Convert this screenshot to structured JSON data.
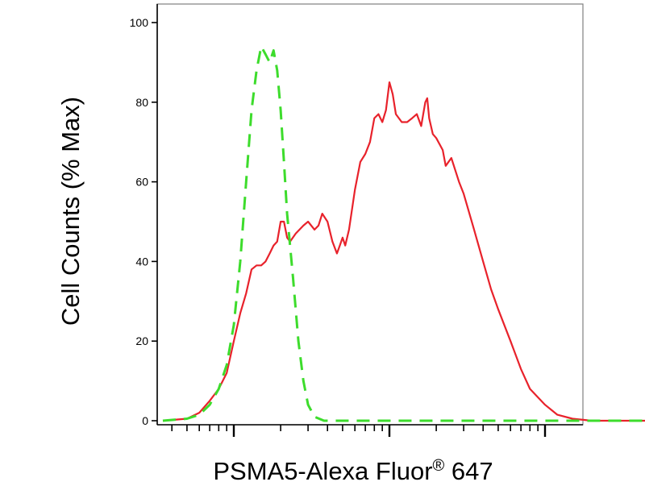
{
  "chart_data": {
    "type": "line",
    "title": "",
    "ylabel": "Cell Counts (% Max)",
    "xlabel": "PSMA5-Alexa Fluor",
    "xlabel_mark": "®",
    "xlabel_suffix": "647",
    "x_scale": "log",
    "x_tick_labels_shown": false,
    "xlim": [
      0.35,
      3000
    ],
    "ylim": [
      0,
      100
    ],
    "yticks": [
      0,
      20,
      40,
      60,
      80,
      100
    ],
    "ytick_labels": [
      "0",
      "20",
      "40",
      "60",
      "80",
      "100"
    ],
    "grid": false,
    "series": [
      {
        "color": "#e8222b",
        "style": "solid",
        "points": [
          [
            0.35,
            0
          ],
          [
            0.5,
            0.5
          ],
          [
            0.6,
            2
          ],
          [
            0.7,
            5
          ],
          [
            0.8,
            8
          ],
          [
            0.9,
            12
          ],
          [
            1.0,
            20
          ],
          [
            1.1,
            27
          ],
          [
            1.2,
            32
          ],
          [
            1.3,
            38
          ],
          [
            1.4,
            39
          ],
          [
            1.5,
            39
          ],
          [
            1.6,
            40
          ],
          [
            1.7,
            42
          ],
          [
            1.8,
            44
          ],
          [
            1.9,
            45
          ],
          [
            2.0,
            50
          ],
          [
            2.1,
            50
          ],
          [
            2.2,
            46
          ],
          [
            2.3,
            45
          ],
          [
            2.5,
            47
          ],
          [
            2.8,
            49
          ],
          [
            3.0,
            50
          ],
          [
            3.3,
            48
          ],
          [
            3.5,
            49
          ],
          [
            3.7,
            52
          ],
          [
            4.0,
            50
          ],
          [
            4.3,
            45
          ],
          [
            4.6,
            42
          ],
          [
            4.8,
            44
          ],
          [
            5.0,
            46
          ],
          [
            5.2,
            44
          ],
          [
            5.5,
            48
          ],
          [
            6.0,
            58
          ],
          [
            6.5,
            65
          ],
          [
            7.0,
            67
          ],
          [
            7.5,
            70
          ],
          [
            8.0,
            76
          ],
          [
            8.5,
            77
          ],
          [
            9.0,
            75
          ],
          [
            9.5,
            78
          ],
          [
            10.0,
            85
          ],
          [
            10.5,
            82
          ],
          [
            11.0,
            77
          ],
          [
            12.0,
            75
          ],
          [
            13.0,
            75
          ],
          [
            14.0,
            76
          ],
          [
            15.0,
            77
          ],
          [
            16.0,
            74
          ],
          [
            17.0,
            80
          ],
          [
            17.5,
            81
          ],
          [
            18.0,
            76
          ],
          [
            19.0,
            72
          ],
          [
            20.0,
            71
          ],
          [
            22.0,
            68
          ],
          [
            23.0,
            64
          ],
          [
            25.0,
            66
          ],
          [
            28.0,
            60
          ],
          [
            30.0,
            57
          ],
          [
            35.0,
            48
          ],
          [
            40.0,
            40
          ],
          [
            45.0,
            33
          ],
          [
            50.0,
            28
          ],
          [
            60.0,
            20
          ],
          [
            70.0,
            13
          ],
          [
            80.0,
            8
          ],
          [
            100.0,
            4
          ],
          [
            120.0,
            1.5
          ],
          [
            150.0,
            0.5
          ],
          [
            200.0,
            0
          ],
          [
            3000.0,
            0
          ]
        ]
      },
      {
        "color": "#3ddc2c",
        "style": "dashed",
        "points": [
          [
            0.35,
            0
          ],
          [
            0.5,
            0.5
          ],
          [
            0.6,
            1.5
          ],
          [
            0.7,
            4
          ],
          [
            0.8,
            8
          ],
          [
            0.9,
            14
          ],
          [
            1.0,
            24
          ],
          [
            1.1,
            40
          ],
          [
            1.2,
            60
          ],
          [
            1.3,
            78
          ],
          [
            1.4,
            88
          ],
          [
            1.5,
            94
          ],
          [
            1.6,
            92
          ],
          [
            1.7,
            90
          ],
          [
            1.8,
            93
          ],
          [
            1.9,
            88
          ],
          [
            2.0,
            78
          ],
          [
            2.1,
            65
          ],
          [
            2.2,
            52
          ],
          [
            2.4,
            36
          ],
          [
            2.6,
            20
          ],
          [
            2.8,
            10
          ],
          [
            3.0,
            4
          ],
          [
            3.3,
            1
          ],
          [
            3.8,
            0
          ],
          [
            3000.0,
            0
          ]
        ]
      }
    ]
  }
}
